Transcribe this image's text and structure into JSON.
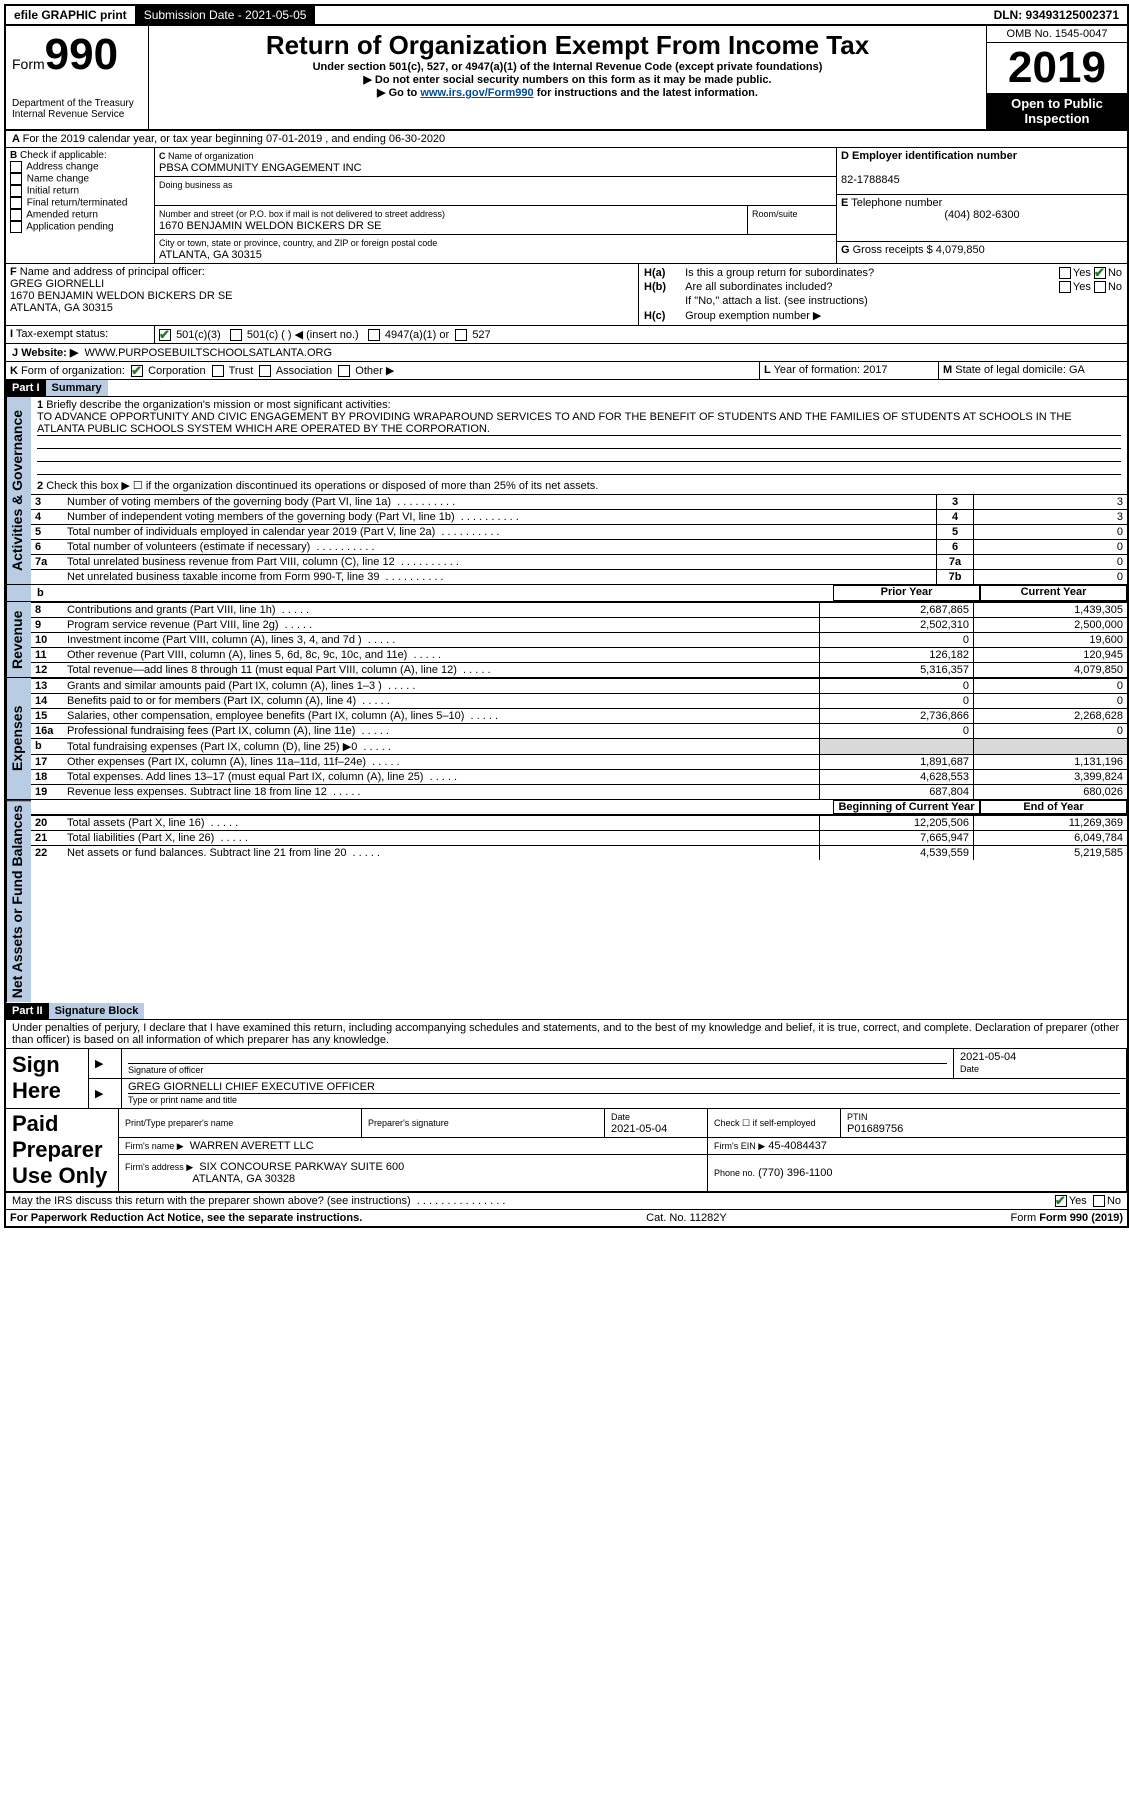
{
  "topbar": {
    "efile": "efile GRAPHIC print",
    "submission_label": "Submission Date - 2021-05-05",
    "dln": "DLN: 93493125002371"
  },
  "header": {
    "form_prefix": "Form",
    "form_num": "990",
    "dept": "Department of the Treasury\nInternal Revenue Service",
    "title": "Return of Organization Exempt From Income Tax",
    "sub1": "Under section 501(c), 527, or 4947(a)(1) of the Internal Revenue Code (except private foundations)",
    "sub2": "▶ Do not enter social security numbers on this form as it may be made public.",
    "sub3_pre": "▶ Go to ",
    "sub3_link": "www.irs.gov/Form990",
    "sub3_post": " for instructions and the latest information.",
    "omb": "OMB No. 1545-0047",
    "year": "2019",
    "open": "Open to Public Inspection"
  },
  "A": {
    "text": "For the 2019 calendar year, or tax year beginning 07-01-2019  , and ending 06-30-2020"
  },
  "B": {
    "label": "Check if applicable:",
    "opts": [
      "Address change",
      "Name change",
      "Initial return",
      "Final return/terminated",
      "Amended return",
      "Application pending"
    ]
  },
  "C": {
    "name_label": "Name of organization",
    "name": "PBSA COMMUNITY ENGAGEMENT INC",
    "dba_label": "Doing business as",
    "addr_label": "Number and street (or P.O. box if mail is not delivered to street address)",
    "room_label": "Room/suite",
    "addr": "1670 BENJAMIN WELDON BICKERS DR SE",
    "city_label": "City or town, state or province, country, and ZIP or foreign postal code",
    "city": "ATLANTA, GA  30315"
  },
  "D": {
    "label": "Employer identification number",
    "val": "82-1788845"
  },
  "E": {
    "label": "Telephone number",
    "val": "(404) 802-6300"
  },
  "G": {
    "label": "Gross receipts $",
    "val": "4,079,850"
  },
  "F": {
    "label": "Name and address of principal officer:",
    "name": "GREG GIORNELLI",
    "addr1": "1670 BENJAMIN WELDON BICKERS DR SE",
    "addr2": "ATLANTA, GA  30315"
  },
  "H": {
    "a": "Is this a group return for subordinates?",
    "b": "Are all subordinates included?",
    "b2": "If \"No,\" attach a list. (see instructions)",
    "c": "Group exemption number ▶"
  },
  "I": {
    "label": "Tax-exempt status:",
    "o1": "501(c)(3)",
    "o2": "501(c) (   ) ◀ (insert no.)",
    "o3": "4947(a)(1) or",
    "o4": "527"
  },
  "J": {
    "label": "Website: ▶",
    "val": "WWW.PURPOSEBUILTSCHOOLSATLANTA.ORG"
  },
  "K": {
    "label": "Form of organization:",
    "opts": [
      "Corporation",
      "Trust",
      "Association",
      "Other ▶"
    ]
  },
  "L": {
    "label": "Year of formation:",
    "val": "2017"
  },
  "M": {
    "label": "State of legal domicile:",
    "val": "GA"
  },
  "part1": {
    "hdr": "Part I",
    "title": "Summary",
    "l1": "Briefly describe the organization's mission or most significant activities:",
    "mission": "TO ADVANCE OPPORTUNITY AND CIVIC ENGAGEMENT BY PROVIDING WRAPAROUND SERVICES TO AND FOR THE BENEFIT OF STUDENTS AND THE FAMILIES OF STUDENTS AT SCHOOLS IN THE ATLANTA PUBLIC SCHOOLS SYSTEM WHICH ARE OPERATED BY THE CORPORATION.",
    "l2": "Check this box ▶ ☐  if the organization discontinued its operations or disposed of more than 25% of its net assets.",
    "lines": [
      {
        "n": "3",
        "t": "Number of voting members of the governing body (Part VI, line 1a)",
        "box": "3",
        "v": "3"
      },
      {
        "n": "4",
        "t": "Number of independent voting members of the governing body (Part VI, line 1b)",
        "box": "4",
        "v": "3"
      },
      {
        "n": "5",
        "t": "Total number of individuals employed in calendar year 2019 (Part V, line 2a)",
        "box": "5",
        "v": "0"
      },
      {
        "n": "6",
        "t": "Total number of volunteers (estimate if necessary)",
        "box": "6",
        "v": "0"
      },
      {
        "n": "7a",
        "t": "Total unrelated business revenue from Part VIII, column (C), line 12",
        "box": "7a",
        "v": "0"
      },
      {
        "n": "",
        "t": "Net unrelated business taxable income from Form 990-T, line 39",
        "box": "7b",
        "v": "0"
      }
    ],
    "sidelabels": {
      "ag": "Activities & Governance",
      "rev": "Revenue",
      "exp": "Expenses",
      "na": "Net Assets or Fund Balances"
    },
    "colhdr": {
      "prior": "Prior Year",
      "current": "Current Year"
    },
    "rev": [
      {
        "n": "8",
        "t": "Contributions and grants (Part VIII, line 1h)",
        "p": "2,687,865",
        "c": "1,439,305"
      },
      {
        "n": "9",
        "t": "Program service revenue (Part VIII, line 2g)",
        "p": "2,502,310",
        "c": "2,500,000"
      },
      {
        "n": "10",
        "t": "Investment income (Part VIII, column (A), lines 3, 4, and 7d )",
        "p": "0",
        "c": "19,600"
      },
      {
        "n": "11",
        "t": "Other revenue (Part VIII, column (A), lines 5, 6d, 8c, 9c, 10c, and 11e)",
        "p": "126,182",
        "c": "120,945"
      },
      {
        "n": "12",
        "t": "Total revenue—add lines 8 through 11 (must equal Part VIII, column (A), line 12)",
        "p": "5,316,357",
        "c": "4,079,850"
      }
    ],
    "exp": [
      {
        "n": "13",
        "t": "Grants and similar amounts paid (Part IX, column (A), lines 1–3 )",
        "p": "0",
        "c": "0"
      },
      {
        "n": "14",
        "t": "Benefits paid to or for members (Part IX, column (A), line 4)",
        "p": "0",
        "c": "0"
      },
      {
        "n": "15",
        "t": "Salaries, other compensation, employee benefits (Part IX, column (A), lines 5–10)",
        "p": "2,736,866",
        "c": "2,268,628"
      },
      {
        "n": "16a",
        "t": "Professional fundraising fees (Part IX, column (A), line 11e)",
        "p": "0",
        "c": "0"
      },
      {
        "n": "b",
        "t": "Total fundraising expenses (Part IX, column (D), line 25) ▶0",
        "p": "",
        "c": "",
        "shade": true
      },
      {
        "n": "17",
        "t": "Other expenses (Part IX, column (A), lines 11a–11d, 11f–24e)",
        "p": "1,891,687",
        "c": "1,131,196"
      },
      {
        "n": "18",
        "t": "Total expenses. Add lines 13–17 (must equal Part IX, column (A), line 25)",
        "p": "4,628,553",
        "c": "3,399,824"
      },
      {
        "n": "19",
        "t": "Revenue less expenses. Subtract line 18 from line 12",
        "p": "687,804",
        "c": "680,026"
      }
    ],
    "nahdr": {
      "beg": "Beginning of Current Year",
      "end": "End of Year"
    },
    "na": [
      {
        "n": "20",
        "t": "Total assets (Part X, line 16)",
        "p": "12,205,506",
        "c": "11,269,369"
      },
      {
        "n": "21",
        "t": "Total liabilities (Part X, line 26)",
        "p": "7,665,947",
        "c": "6,049,784"
      },
      {
        "n": "22",
        "t": "Net assets or fund balances. Subtract line 21 from line 20",
        "p": "4,539,559",
        "c": "5,219,585"
      }
    ]
  },
  "part2": {
    "hdr": "Part II",
    "title": "Signature Block",
    "decl": "Under penalties of perjury, I declare that I have examined this return, including accompanying schedules and statements, and to the best of my knowledge and belief, it is true, correct, and complete. Declaration of preparer (other than officer) is based on all information of which preparer has any knowledge.",
    "sign_here": "Sign Here",
    "sig_officer": "Signature of officer",
    "date": "2021-05-04",
    "date_label": "Date",
    "officer": "GREG GIORNELLI  CHIEF EXECUTIVE OFFICER",
    "type_label": "Type or print name and title",
    "paid": "Paid Preparer Use Only",
    "p_name_label": "Print/Type preparer's name",
    "p_sig_label": "Preparer's signature",
    "p_date": "2021-05-04",
    "p_check": "Check ☐ if self-employed",
    "ptin_label": "PTIN",
    "ptin": "P01689756",
    "firm_name_label": "Firm's name   ▶",
    "firm_name": "WARREN AVERETT LLC",
    "firm_ein_label": "Firm's EIN ▶",
    "firm_ein": "45-4084437",
    "firm_addr_label": "Firm's address ▶",
    "firm_addr1": "SIX CONCOURSE PARKWAY SUITE 600",
    "firm_addr2": "ATLANTA, GA  30328",
    "phone_label": "Phone no.",
    "phone": "(770) 396-1100",
    "discuss": "May the IRS discuss this return with the preparer shown above? (see instructions)"
  },
  "footer": {
    "pra": "For Paperwork Reduction Act Notice, see the separate instructions.",
    "cat": "Cat. No. 11282Y",
    "form": "Form 990 (2019)"
  },
  "yes": "Yes",
  "no": "No"
}
